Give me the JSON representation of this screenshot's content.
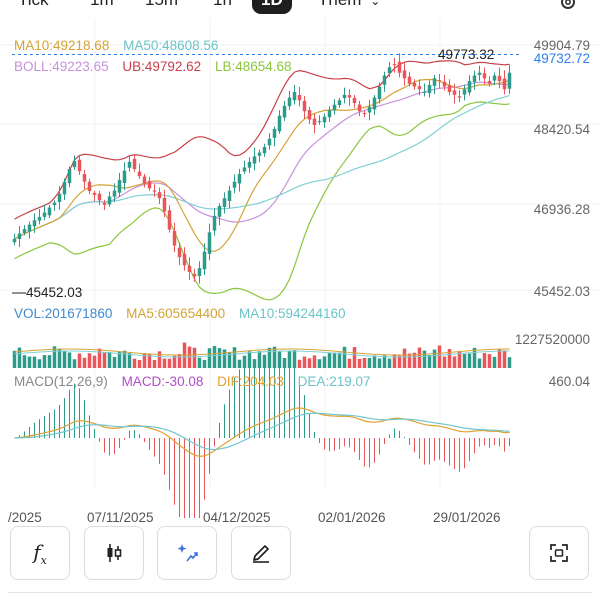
{
  "tabs": [
    {
      "label": "Tick",
      "active": false
    },
    {
      "label": "1m",
      "active": false
    },
    {
      "label": "15m",
      "active": false
    },
    {
      "label": "1h",
      "active": false
    },
    {
      "label": "1D",
      "active": true
    },
    {
      "label": "Them",
      "active": false
    }
  ],
  "icons": {
    "settings": "gear-icon",
    "chevron": "chevron-down-icon"
  },
  "legend": {
    "ma10": "MA10:49218.68",
    "ma50": "MA50:48608.56",
    "boll": "BOLL:49223.65",
    "ub": "UB:49792.62",
    "lb": "LB:48654.68"
  },
  "price_axis": {
    "top": "49904.79",
    "high_marker": "49773.32",
    "last_price": "49732.72",
    "l2": "48420.54",
    "l3": "46936.28",
    "low_marker": "45452.03",
    "bottom": "45452.03"
  },
  "volume": {
    "vol": "VOL:201671860",
    "ma5": "MA5:605654400",
    "ma10": "MA10:594244160",
    "axis_max": "1227520000"
  },
  "macd": {
    "params": "MACD(12,26,9)",
    "macd": "MACD:-30.08",
    "dif": "DIF:204.03",
    "dea": "DEA:219.07",
    "axis_max": "460.04"
  },
  "dates": [
    "/2025",
    "07/11/2025",
    "04/12/2025",
    "02/01/2026",
    "29/01/2026"
  ],
  "colors": {
    "up": "#2e9a8a",
    "down": "#e8565a",
    "ma10": "#d4a437",
    "ma50": "#7fd0d4",
    "boll": "#c792dd",
    "ub": "#c8404a",
    "lb": "#8cc63e",
    "vol": "#3d8ad0",
    "macd": "#b04fc8",
    "dif": "#e0a030",
    "dea": "#6fc6d0",
    "last_price": "#2f7ff0"
  },
  "toolbar": [
    {
      "name": "indicator-fx-button",
      "icon": "fx-icon"
    },
    {
      "name": "candle-style-button",
      "icon": "candlestick-icon"
    },
    {
      "name": "ai-drawing-button",
      "icon": "sparkle-trend-icon"
    },
    {
      "name": "draw-tool-button",
      "icon": "pencil-icon"
    },
    {
      "name": "fullscreen-button",
      "icon": "fullscreen-icon"
    }
  ],
  "chart_data": {
    "type": "candlestick",
    "price_range": [
      45452.03,
      49904.79
    ],
    "last_price": 49732.72,
    "high": 49773.32,
    "low": 45452.03,
    "x_tick_labels": [
      "/2025",
      "07/11/2025",
      "04/12/2025",
      "02/01/2026",
      "29/01/2026"
    ],
    "closes": [
      46380,
      46480,
      46560,
      46640,
      46720,
      46780,
      46860,
      46950,
      47040,
      47200,
      47420,
      47650,
      47800,
      47610,
      47420,
      47250,
      47180,
      47080,
      47000,
      47150,
      47260,
      47450,
      47620,
      47780,
      47650,
      47520,
      47380,
      47300,
      47240,
      47120,
      46880,
      46550,
      46260,
      46050,
      45900,
      45780,
      45700,
      45850,
      46150,
      46500,
      46800,
      46980,
      47120,
      47260,
      47420,
      47560,
      47680,
      47780,
      47880,
      47950,
      48050,
      48200,
      48380,
      48620,
      48800,
      48950,
      49050,
      48900,
      48700,
      48550,
      48450,
      48520,
      48600,
      48720,
      48820,
      48900,
      49000,
      48950,
      48850,
      48700,
      48650,
      48780,
      48950,
      49150,
      49350,
      49500,
      49550,
      49400,
      49300,
      49200,
      49150,
      49100,
      49050,
      49180,
      49300,
      49250,
      49150,
      49050,
      49000,
      48950,
      49100,
      49250,
      49350,
      49400,
      49300,
      49200,
      49350,
      49250,
      49100,
      49400
    ]
  }
}
